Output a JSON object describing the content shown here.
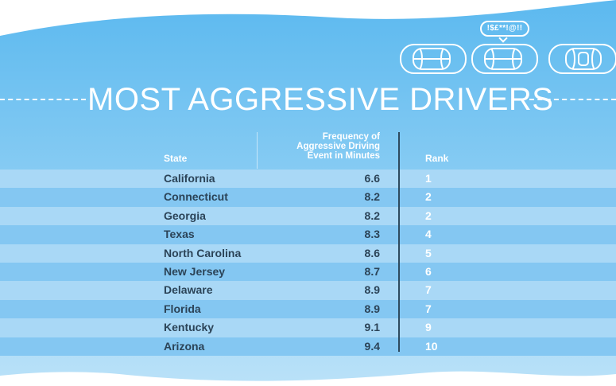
{
  "title": "MOST AGGRESSIVE DRIVERS",
  "speech_bubble": "!$£**!@!!",
  "colors": {
    "wave_top": "#5ebbf0",
    "row_light": "#a9d8f6",
    "row_dark": "#84c7f2",
    "text_dark": "#2b4357",
    "text_light": "#ffffff"
  },
  "icons": [
    "car-icon",
    "car-icon",
    "car-icon"
  ],
  "table": {
    "headers": {
      "state": "State",
      "frequency": [
        "Frequency of",
        "Aggressive Driving",
        "Event in Minutes"
      ],
      "rank": "Rank"
    },
    "rows": [
      {
        "state": "California",
        "frequency": "6.6",
        "rank": "1"
      },
      {
        "state": "Connecticut",
        "frequency": "8.2",
        "rank": "2"
      },
      {
        "state": "Georgia",
        "frequency": "8.2",
        "rank": "2"
      },
      {
        "state": "Texas",
        "frequency": "8.3",
        "rank": "4"
      },
      {
        "state": "North Carolina",
        "frequency": "8.6",
        "rank": "5"
      },
      {
        "state": "New Jersey",
        "frequency": "8.7",
        "rank": "6"
      },
      {
        "state": "Delaware",
        "frequency": "8.9",
        "rank": "7"
      },
      {
        "state": "Florida",
        "frequency": "8.9",
        "rank": "7"
      },
      {
        "state": "Kentucky",
        "frequency": "9.1",
        "rank": "9"
      },
      {
        "state": "Arizona",
        "frequency": "9.4",
        "rank": "10"
      }
    ]
  }
}
